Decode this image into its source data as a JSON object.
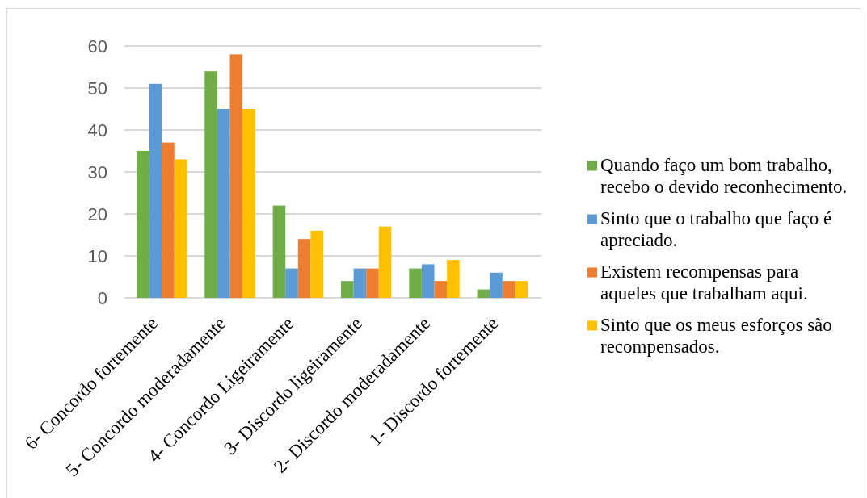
{
  "chart_data": {
    "type": "bar",
    "categories": [
      "6- Concordo fortemente",
      "5- Concordo moderadamente",
      "4- Concordo Ligeiramente",
      "3- Discordo ligeiramente",
      "2- Discordo moderadamente",
      "1- Discordo fortemente"
    ],
    "series": [
      {
        "name": "Quando faço um bom trabalho, recebo o devido reconhecimento.",
        "color": "#70ad47",
        "values": [
          35,
          54,
          22,
          4,
          7,
          2
        ]
      },
      {
        "name": "Sinto que o trabalho que faço é apreciado.",
        "color": "#5b9bd5",
        "values": [
          51,
          45,
          7,
          7,
          8,
          6
        ]
      },
      {
        "name": "Existem recompensas para aqueles que trabalham aqui.",
        "color": "#ed7d31",
        "values": [
          37,
          58,
          14,
          7,
          4,
          4
        ]
      },
      {
        "name": "Sinto que os meus esforços são recompensados.",
        "color": "#ffc000",
        "values": [
          33,
          45,
          16,
          17,
          9,
          4
        ]
      }
    ],
    "ylim": [
      0,
      60
    ],
    "yticks": [
      0,
      10,
      20,
      30,
      40,
      50,
      60
    ],
    "grid": "y",
    "legend": "right"
  }
}
